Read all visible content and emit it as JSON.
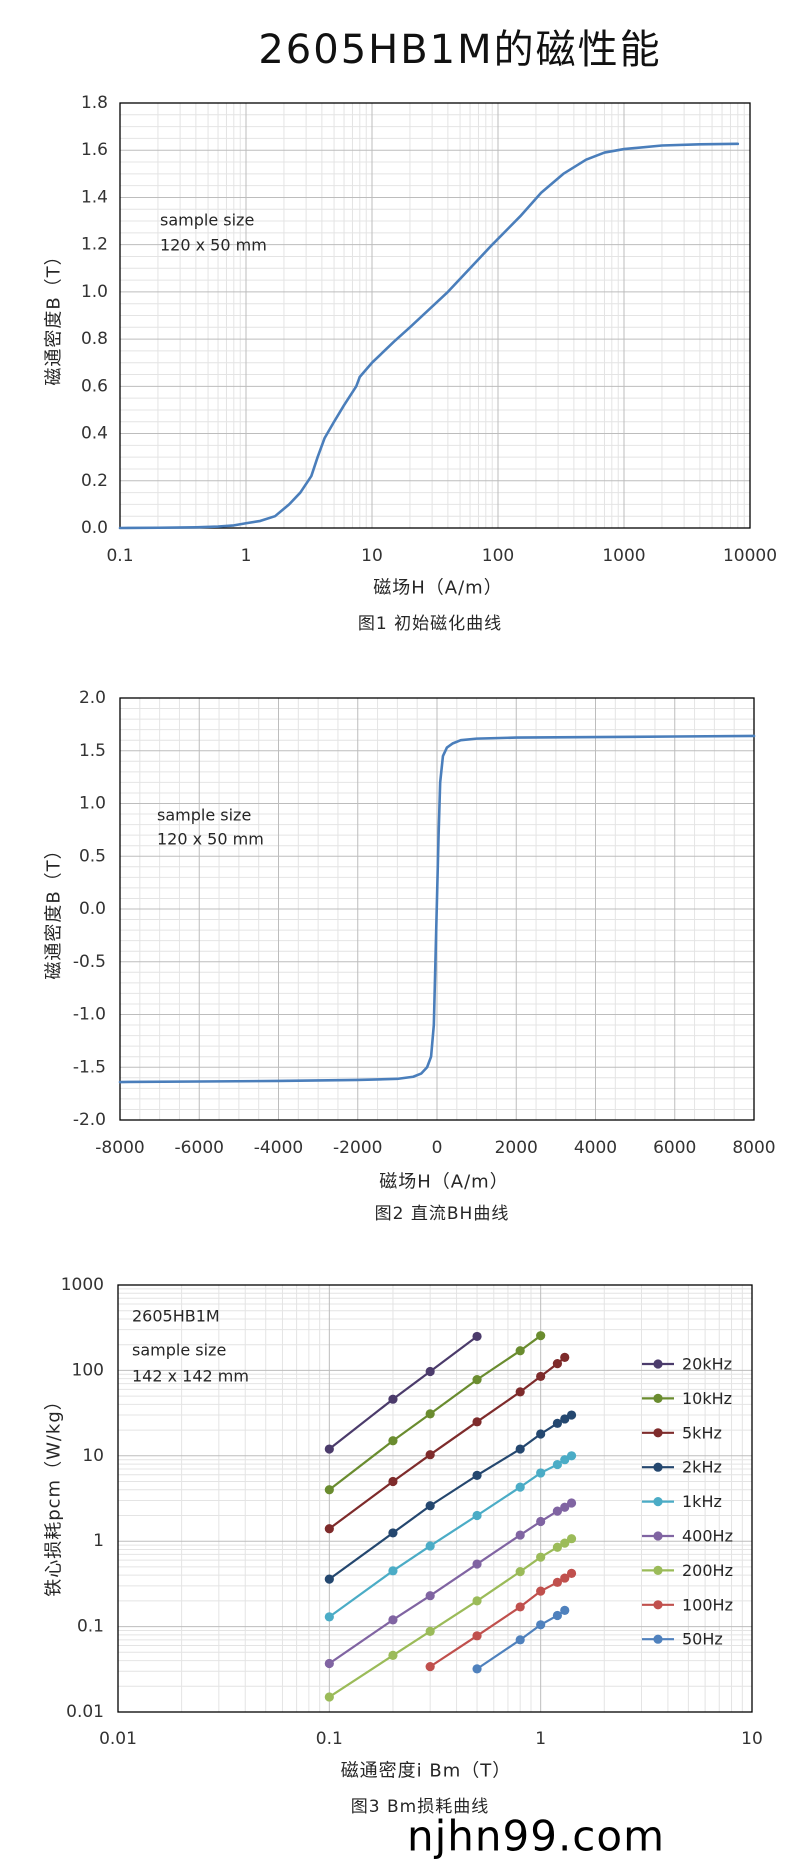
{
  "title": "2605HB1M的磁性能",
  "watermark": "njhn99.com",
  "colors": {
    "grid_major": "#BDBDBD",
    "grid_minor": "#E4E4E4",
    "plot_border": "#000000",
    "curve": "#4A7EBB"
  },
  "chart_data": [
    {
      "type": "line",
      "caption": "图1 初始磁化曲线",
      "xlabel": "磁场H（A/m）",
      "ylabel": "磁通密度B（T）",
      "xscale": "log",
      "yscale": "linear",
      "xlim": [
        0.1,
        10000
      ],
      "ylim": [
        0,
        1.8
      ],
      "xticks": [
        "0.1",
        "1",
        "10",
        "100",
        "1000",
        "10000"
      ],
      "yticks": [
        "0.0",
        "0.2",
        "0.4",
        "0.6",
        "0.8",
        "1.0",
        "1.2",
        "1.4",
        "1.6",
        "1.8"
      ],
      "annotation": [
        "sample size",
        "120 x 50 mm"
      ],
      "grid": true,
      "legend": "none",
      "markers": false,
      "series": [
        {
          "color": "#4A7EBB",
          "x": [
            0.1,
            0.2,
            0.4,
            0.6,
            0.8,
            1,
            1.3,
            1.7,
            2.2,
            2.7,
            3.3,
            3.7,
            4.2,
            5,
            6,
            7.5,
            8,
            10,
            15,
            20,
            40,
            90,
            150,
            220,
            330,
            500,
            700,
            1000,
            2000,
            4000,
            8000
          ],
          "y": [
            0,
            0.001,
            0.003,
            0.006,
            0.011,
            0.02,
            0.03,
            0.05,
            0.1,
            0.15,
            0.22,
            0.3,
            0.38,
            0.45,
            0.52,
            0.6,
            0.64,
            0.7,
            0.79,
            0.85,
            1.0,
            1.2,
            1.32,
            1.42,
            1.5,
            1.56,
            1.59,
            1.605,
            1.62,
            1.625,
            1.627
          ]
        }
      ]
    },
    {
      "type": "line",
      "caption": "图2 直流BH曲线",
      "xlabel": "磁场H（A/m）",
      "ylabel": "磁通密度B（T）",
      "xscale": "linear",
      "yscale": "linear",
      "xlim": [
        -8000,
        8000
      ],
      "ylim": [
        -2,
        2
      ],
      "xticks": [
        "-8000",
        "-6000",
        "-4000",
        "-2000",
        "0",
        "2000",
        "4000",
        "6000",
        "8000"
      ],
      "yticks": [
        "-2.0",
        "-1.5",
        "-1.0",
        "-0.5",
        "0.0",
        "0.5",
        "1.0",
        "1.5",
        "2.0"
      ],
      "annotation": [
        "sample size",
        "120 x 50 mm"
      ],
      "grid": true,
      "legend": "none",
      "markers": false,
      "series": [
        {
          "color": "#4A7EBB",
          "x": [
            -8000,
            -6000,
            -4000,
            -2000,
            -1000,
            -600,
            -400,
            -250,
            -150,
            -80,
            -40,
            0,
            40,
            80,
            150,
            250,
            400,
            600,
            1000,
            2000,
            4000,
            6000,
            8000
          ],
          "y": [
            -1.64,
            -1.635,
            -1.63,
            -1.62,
            -1.61,
            -1.59,
            -1.56,
            -1.5,
            -1.4,
            -1.1,
            -0.5,
            0.1,
            0.7,
            1.2,
            1.45,
            1.53,
            1.57,
            1.6,
            1.615,
            1.625,
            1.63,
            1.635,
            1.64
          ]
        }
      ]
    },
    {
      "type": "line",
      "caption": "图3 Bm损耗曲线",
      "xlabel": "磁通密度i Bm（T）",
      "ylabel": "铁心损耗pcm（W/kg）",
      "xscale": "log",
      "yscale": "log",
      "xlim": [
        0.01,
        10
      ],
      "ylim": [
        0.01,
        1000
      ],
      "xticks": [
        "0.01",
        "0.1",
        "1",
        "10"
      ],
      "yticks": [
        "0.01",
        "0.1",
        "1",
        "10",
        "100",
        "1000"
      ],
      "annotation": [
        "2605HB1M",
        "sample size",
        "142 x 142 mm"
      ],
      "grid": true,
      "legend": "right",
      "markers": true,
      "series": [
        {
          "name": "20kHz",
          "color": "#4B3B6B",
          "x": [
            0.1,
            0.2,
            0.3,
            0.5
          ],
          "y": [
            12,
            46,
            97,
            250
          ]
        },
        {
          "name": "10kHz",
          "color": "#6A8C2F",
          "x": [
            0.1,
            0.2,
            0.3,
            0.5,
            0.8,
            1.0
          ],
          "y": [
            4,
            15,
            31,
            78,
            170,
            255
          ]
        },
        {
          "name": "5kHz",
          "color": "#7E2B2B",
          "x": [
            0.1,
            0.2,
            0.3,
            0.5,
            0.8,
            1.0,
            1.2,
            1.3
          ],
          "y": [
            1.4,
            5,
            10.3,
            25,
            56,
            85,
            120,
            142
          ]
        },
        {
          "name": "2kHz",
          "color": "#24476F",
          "x": [
            0.1,
            0.2,
            0.3,
            0.5,
            0.8,
            1.0,
            1.2,
            1.3,
            1.4
          ],
          "y": [
            0.36,
            1.25,
            2.6,
            5.9,
            12,
            18,
            24,
            27,
            30
          ]
        },
        {
          "name": "1kHz",
          "color": "#4BACC6",
          "x": [
            0.1,
            0.2,
            0.3,
            0.5,
            0.8,
            1.0,
            1.2,
            1.3,
            1.4
          ],
          "y": [
            0.13,
            0.45,
            0.88,
            2.0,
            4.3,
            6.3,
            7.9,
            9.0,
            10
          ]
        },
        {
          "name": "400Hz",
          "color": "#8064A2",
          "x": [
            0.1,
            0.2,
            0.3,
            0.5,
            0.8,
            1.0,
            1.2,
            1.3,
            1.4
          ],
          "y": [
            0.037,
            0.12,
            0.23,
            0.54,
            1.18,
            1.7,
            2.25,
            2.5,
            2.8
          ]
        },
        {
          "name": "200Hz",
          "color": "#9BBB59",
          "x": [
            0.1,
            0.2,
            0.3,
            0.5,
            0.8,
            1.0,
            1.2,
            1.3,
            1.4
          ],
          "y": [
            0.015,
            0.046,
            0.088,
            0.2,
            0.44,
            0.65,
            0.85,
            0.95,
            1.07
          ]
        },
        {
          "name": "100Hz",
          "color": "#C0504D",
          "x": [
            0.3,
            0.5,
            0.8,
            1.0,
            1.2,
            1.3,
            1.4
          ],
          "y": [
            0.034,
            0.078,
            0.17,
            0.26,
            0.33,
            0.37,
            0.42
          ]
        },
        {
          "name": "50Hz",
          "color": "#4F81BD",
          "x": [
            0.5,
            0.8,
            1.0,
            1.2,
            1.3
          ],
          "y": [
            0.032,
            0.07,
            0.105,
            0.135,
            0.155
          ]
        }
      ]
    }
  ]
}
